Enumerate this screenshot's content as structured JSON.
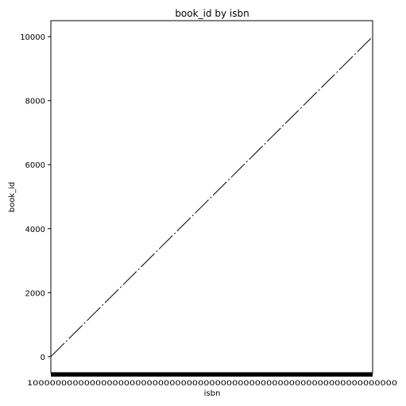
{
  "chart_data": {
    "type": "line",
    "title": "book_id by isbn",
    "xlabel": "isbn",
    "ylabel": "book_id",
    "x_tick_labels": "10000000000000000000000000000000000000000000000000000000000000000",
    "ylim": [
      -500,
      10500
    ],
    "y_ticks": [
      0,
      2000,
      4000,
      6000,
      8000,
      10000
    ],
    "y_tick_labels": [
      "0",
      "2000",
      "4000",
      "6000",
      "8000",
      "10000"
    ],
    "grid": false,
    "legend": "none",
    "series": [
      {
        "color": "#000000",
        "line_style": "dashed",
        "x_start_index": 1,
        "x_end_index": 10000,
        "values_start": 1,
        "values_end": 10000
      }
    ]
  },
  "colors": {
    "background": "#ffffff",
    "axes": "#000000",
    "line": "#000000"
  }
}
